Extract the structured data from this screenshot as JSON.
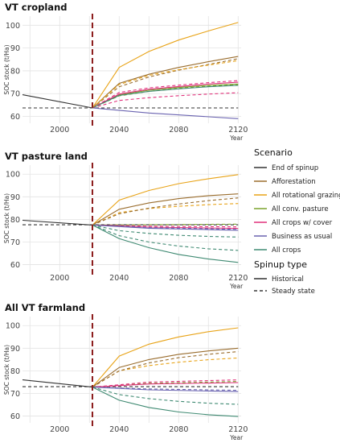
{
  "chart_data": [
    {
      "type": "line",
      "title": "VT cropland",
      "ylabel": "SOC stock (t/Ha)",
      "xlabel": "Year",
      "xlim": [
        1975,
        2122
      ],
      "ylim": [
        57,
        104
      ],
      "x_ticks": [
        2000,
        2040,
        2080,
        2120
      ],
      "y_ticks": [
        60,
        70,
        80,
        90,
        100
      ],
      "divider_year": 2022,
      "series": [
        {
          "name": "End of spinup",
          "style": "solid",
          "color": "#333333",
          "x": [
            1975,
            2022
          ],
          "y": [
            69.5,
            63.7
          ]
        },
        {
          "name": "End of spinup",
          "style": "dashed",
          "color": "#333333",
          "x": [
            1975,
            2120
          ],
          "y": [
            63.7,
            63.7
          ]
        },
        {
          "name": "Business as usual",
          "style": "solid",
          "color": "#6a63b0",
          "x": [
            2022,
            2060,
            2120
          ],
          "y": [
            63.7,
            61.5,
            59.0
          ]
        },
        {
          "name": "Afforestation",
          "style": "solid",
          "color": "#9a6d2e",
          "x": [
            2022,
            2040,
            2060,
            2080,
            2100,
            2120
          ],
          "y": [
            63.7,
            74.5,
            78.5,
            81.5,
            84.0,
            86.3
          ]
        },
        {
          "name": "Afforestation",
          "style": "dashed",
          "color": "#9a6d2e",
          "x": [
            2022,
            2040,
            2060,
            2080,
            2100,
            2120
          ],
          "y": [
            63.7,
            73.0,
            77.3,
            80.3,
            82.8,
            85.3
          ]
        },
        {
          "name": "All rotational grazing",
          "style": "solid",
          "color": "#e8a317",
          "x": [
            2022,
            2040,
            2060,
            2080,
            2100,
            2120
          ],
          "y": [
            63.7,
            81.5,
            88.5,
            93.5,
            97.5,
            101.2
          ]
        },
        {
          "name": "All rotational grazing",
          "style": "dashed",
          "color": "#e8a317",
          "x": [
            2022,
            2040,
            2060,
            2080,
            2100,
            2120
          ],
          "y": [
            63.7,
            74.0,
            78.0,
            80.5,
            82.5,
            84.5
          ]
        },
        {
          "name": "All conv. pasture",
          "style": "solid",
          "color": "#7aa22c",
          "x": [
            2022,
            2040,
            2060,
            2080,
            2100,
            2120
          ],
          "y": [
            63.7,
            69.5,
            71.5,
            72.7,
            73.6,
            74.2
          ]
        },
        {
          "name": "All conv. pasture",
          "style": "dashed",
          "color": "#7aa22c",
          "x": [
            2022,
            2040,
            2060,
            2080,
            2100,
            2120
          ],
          "y": [
            63.7,
            69.0,
            71.0,
            72.3,
            73.3,
            74.0
          ]
        },
        {
          "name": "All crops w/ cover",
          "style": "solid",
          "color": "#e0307a",
          "x": [
            2022,
            2040,
            2060,
            2080,
            2100,
            2120
          ],
          "y": [
            63.7,
            69.8,
            71.9,
            73.1,
            74.2,
            75.0
          ]
        },
        {
          "name": "All crops w/ cover",
          "style": "dashed",
          "color": "#e0307a",
          "x": [
            2022,
            2040,
            2060,
            2080,
            2100,
            2120
          ],
          "y": [
            63.7,
            70.5,
            72.5,
            73.7,
            74.8,
            75.7
          ]
        },
        {
          "name": "All crops w/ cover",
          "style": "dashed",
          "color": "#e0307a",
          "x": [
            2022,
            2040,
            2060,
            2080,
            2100,
            2120
          ],
          "y": [
            63.7,
            67.0,
            68.2,
            69.1,
            69.8,
            70.4
          ]
        },
        {
          "name": "All crops",
          "style": "solid",
          "color": "#3f8a72",
          "x": [
            2022,
            2040,
            2060,
            2080,
            2100,
            2120
          ],
          "y": [
            63.7,
            69.2,
            71.0,
            72.1,
            73.0,
            73.6
          ]
        }
      ]
    },
    {
      "type": "line",
      "title": "VT pasture land",
      "ylabel": "SOC stock (t/Ha)",
      "xlabel": "Year",
      "xlim": [
        1975,
        2122
      ],
      "ylim": [
        57,
        104
      ],
      "x_ticks": [
        2000,
        2040,
        2080,
        2120
      ],
      "y_ticks": [
        60,
        70,
        80,
        90,
        100
      ],
      "divider_year": 2022,
      "series": [
        {
          "name": "End of spinup",
          "style": "solid",
          "color": "#333333",
          "x": [
            1975,
            2022
          ],
          "y": [
            79.6,
            77.5
          ]
        },
        {
          "name": "End of spinup",
          "style": "dashed",
          "color": "#333333",
          "x": [
            1975,
            2120
          ],
          "y": [
            77.6,
            77.6
          ]
        },
        {
          "name": "All rotational grazing",
          "style": "solid",
          "color": "#e8a317",
          "x": [
            2022,
            2040,
            2060,
            2080,
            2100,
            2120
          ],
          "y": [
            77.5,
            88.5,
            92.8,
            95.8,
            98.0,
            99.8
          ]
        },
        {
          "name": "All rotational grazing",
          "style": "dashed",
          "color": "#e8a317",
          "x": [
            2022,
            2040,
            2060,
            2080,
            2100,
            2120
          ],
          "y": [
            77.5,
            83.0,
            84.8,
            85.8,
            86.5,
            87.0
          ]
        },
        {
          "name": "Afforestation",
          "style": "solid",
          "color": "#9a6d2e",
          "x": [
            2022,
            2040,
            2060,
            2080,
            2100,
            2120
          ],
          "y": [
            77.5,
            84.5,
            87.3,
            89.2,
            90.5,
            91.3
          ]
        },
        {
          "name": "Afforestation",
          "style": "dashed",
          "color": "#9a6d2e",
          "x": [
            2022,
            2040,
            2060,
            2080,
            2100,
            2120
          ],
          "y": [
            77.5,
            82.5,
            85.0,
            86.8,
            88.3,
            89.5
          ]
        },
        {
          "name": "All conv. pasture",
          "style": "dashed",
          "color": "#7aa22c",
          "x": [
            2022,
            2120
          ],
          "y": [
            77.5,
            77.9
          ]
        },
        {
          "name": "All crops w/ cover",
          "style": "solid",
          "color": "#e0307a",
          "x": [
            2022,
            2060,
            2120
          ],
          "y": [
            77.5,
            76.6,
            76.0
          ]
        },
        {
          "name": "All crops w/ cover",
          "style": "dashed",
          "color": "#e0307a",
          "x": [
            2022,
            2060,
            2120
          ],
          "y": [
            77.5,
            77.0,
            76.7
          ]
        },
        {
          "name": "Business as usual",
          "style": "solid",
          "color": "#6a63b0",
          "x": [
            2022,
            2060,
            2120
          ],
          "y": [
            77.5,
            76.1,
            75.2
          ]
        },
        {
          "name": "Business as usual",
          "style": "dashed",
          "color": "#6a63b0",
          "x": [
            2022,
            2060,
            2120
          ],
          "y": [
            77.5,
            76.4,
            75.6
          ]
        },
        {
          "name": "All crops",
          "style": "solid",
          "color": "#3f8a72",
          "x": [
            2022,
            2040,
            2060,
            2080,
            2100,
            2120
          ],
          "y": [
            77.5,
            71.5,
            67.5,
            64.5,
            62.5,
            61.0
          ]
        },
        {
          "name": "All crops",
          "style": "dashed",
          "color": "#3f8a72",
          "x": [
            2022,
            2040,
            2060,
            2080,
            2100,
            2120
          ],
          "y": [
            77.5,
            72.8,
            70.0,
            68.2,
            67.0,
            66.3
          ]
        },
        {
          "name": "All crops",
          "style": "dashed",
          "color": "#3f8a72",
          "x": [
            2022,
            2040,
            2060,
            2080,
            2100,
            2120
          ],
          "y": [
            77.5,
            75.0,
            73.8,
            73.0,
            72.5,
            72.2
          ]
        }
      ]
    },
    {
      "type": "line",
      "title": "All VT farmland",
      "ylabel": "SOC stock (t/Ha)",
      "xlabel": "Year",
      "xlim": [
        1975,
        2122
      ],
      "ylim": [
        57,
        104
      ],
      "x_ticks": [
        2000,
        2040,
        2080,
        2120
      ],
      "y_ticks": [
        60,
        70,
        80,
        90,
        100
      ],
      "divider_year": 2022,
      "series": [
        {
          "name": "End of spinup",
          "style": "solid",
          "color": "#333333",
          "x": [
            1975,
            2022
          ],
          "y": [
            76.0,
            72.8
          ]
        },
        {
          "name": "End of spinup",
          "style": "dashed",
          "color": "#333333",
          "x": [
            1975,
            2120
          ],
          "y": [
            73.0,
            73.0
          ]
        },
        {
          "name": "All rotational grazing",
          "style": "solid",
          "color": "#e8a317",
          "x": [
            2022,
            2040,
            2060,
            2080,
            2100,
            2120
          ],
          "y": [
            72.8,
            86.5,
            91.8,
            95.0,
            97.3,
            99.0
          ]
        },
        {
          "name": "All rotational grazing",
          "style": "dashed",
          "color": "#e8a317",
          "x": [
            2022,
            2040,
            2060,
            2080,
            2100,
            2120
          ],
          "y": [
            72.8,
            80.0,
            82.3,
            83.8,
            84.9,
            85.7
          ]
        },
        {
          "name": "Afforestation",
          "style": "solid",
          "color": "#9a6d2e",
          "x": [
            2022,
            2040,
            2060,
            2080,
            2100,
            2120
          ],
          "y": [
            72.8,
            81.5,
            85.0,
            87.3,
            88.8,
            90.0
          ]
        },
        {
          "name": "Afforestation",
          "style": "dashed",
          "color": "#9a6d2e",
          "x": [
            2022,
            2040,
            2060,
            2080,
            2100,
            2120
          ],
          "y": [
            72.8,
            80.0,
            83.5,
            85.8,
            87.3,
            88.5
          ]
        },
        {
          "name": "All conv. pasture",
          "style": "dashed",
          "color": "#7aa22c",
          "x": [
            2022,
            2060,
            2120
          ],
          "y": [
            72.8,
            74.5,
            75.3
          ]
        },
        {
          "name": "All crops w/ cover",
          "style": "solid",
          "color": "#e0307a",
          "x": [
            2022,
            2060,
            2120
          ],
          "y": [
            72.8,
            74.2,
            74.8
          ]
        },
        {
          "name": "All crops w/ cover",
          "style": "dashed",
          "color": "#e0307a",
          "x": [
            2022,
            2060,
            2120
          ],
          "y": [
            72.8,
            75.0,
            76.0
          ]
        },
        {
          "name": "Business as usual",
          "style": "solid",
          "color": "#6a63b0",
          "x": [
            2022,
            2060,
            2120
          ],
          "y": [
            72.8,
            71.6,
            70.8
          ]
        },
        {
          "name": "Business as usual",
          "style": "dashed",
          "color": "#6a63b0",
          "x": [
            2022,
            2060,
            2120
          ],
          "y": [
            72.8,
            72.0,
            71.4
          ]
        },
        {
          "name": "All crops",
          "style": "solid",
          "color": "#3f8a72",
          "x": [
            2022,
            2040,
            2060,
            2080,
            2100,
            2120
          ],
          "y": [
            72.8,
            67.0,
            63.8,
            61.8,
            60.6,
            59.8
          ]
        },
        {
          "name": "All crops",
          "style": "dashed",
          "color": "#3f8a72",
          "x": [
            2022,
            2040,
            2060,
            2080,
            2100,
            2120
          ],
          "y": [
            72.8,
            69.5,
            67.7,
            66.5,
            65.7,
            65.2
          ]
        }
      ]
    }
  ],
  "legend": {
    "scenario_title": "Scenario",
    "scenarios": [
      {
        "label": "End of spinup",
        "color": "#333333"
      },
      {
        "label": "Afforestation",
        "color": "#9a6d2e"
      },
      {
        "label": "All rotational grazing",
        "color": "#e8a317"
      },
      {
        "label": "All conv. pasture",
        "color": "#7aa22c"
      },
      {
        "label": "All crops w/ cover",
        "color": "#e0307a"
      },
      {
        "label": "Business as usual",
        "color": "#6a63b0"
      },
      {
        "label": "All crops",
        "color": "#3f8a72"
      }
    ],
    "spinup_title": "Spinup type",
    "spinup_types": [
      {
        "label": "Historical",
        "style": "solid"
      },
      {
        "label": "Steady state",
        "style": "dashed"
      }
    ]
  },
  "colors": {
    "divider": "#8b1a1a",
    "grid": "#e3e3e3",
    "envelope": "#e9f2f0"
  }
}
